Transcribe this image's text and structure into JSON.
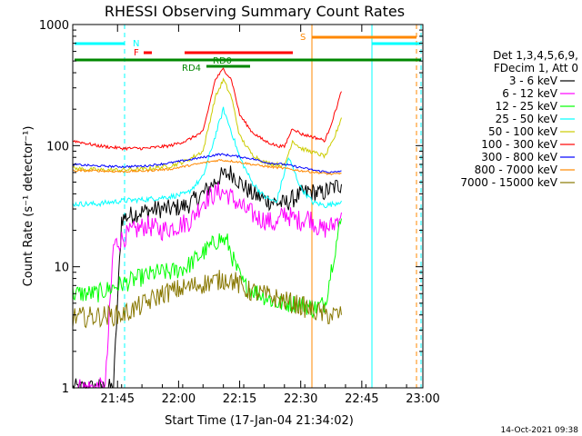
{
  "chart_data": {
    "type": "line",
    "title": "RHESSI Observing Summary Count Rates",
    "xlabel": "Start Time (17-Jan-04 21:34:02)",
    "ylabel": "Count Rate (s⁻¹ detector⁻¹)",
    "yscale": "log",
    "ylim": [
      1,
      1000
    ],
    "xlim_minutes_after_21_00": [
      34,
      120
    ],
    "x_ticks": [
      {
        "label": "21:45",
        "minute": 45
      },
      {
        "label": "22:00",
        "minute": 60
      },
      {
        "label": "22:15",
        "minute": 75
      },
      {
        "label": "22:30",
        "minute": 90
      },
      {
        "label": "22:45",
        "minute": 105
      },
      {
        "label": "23:00",
        "minute": 120
      }
    ],
    "y_ticks": [
      {
        "label": "1",
        "value": 1
      },
      {
        "label": "10",
        "value": 10
      },
      {
        "label": "100",
        "value": 100
      },
      {
        "label": "1000",
        "value": 1000
      }
    ],
    "legend_header": [
      "Det 1,3,4,5,6,9,",
      "FDecim 1, Att 0"
    ],
    "legend_position": "right",
    "series": [
      {
        "name": "3 - 6 keV",
        "color": "#000000",
        "points": [
          [
            34,
            1.0
          ],
          [
            44,
            1.0
          ],
          [
            46,
            25
          ],
          [
            50,
            28
          ],
          [
            55,
            30
          ],
          [
            58,
            30
          ],
          [
            62,
            32
          ],
          [
            66,
            40
          ],
          [
            70,
            55
          ],
          [
            73,
            60
          ],
          [
            75,
            50
          ],
          [
            78,
            40
          ],
          [
            82,
            35
          ],
          [
            86,
            33
          ],
          [
            89,
            38
          ],
          [
            92,
            42
          ],
          [
            95,
            40
          ],
          [
            98,
            45
          ],
          [
            100,
            48
          ]
        ]
      },
      {
        "name": "6 - 12 keV",
        "color": "#ff00ff",
        "points": [
          [
            34,
            1.0
          ],
          [
            42,
            1.0
          ],
          [
            44,
            15
          ],
          [
            48,
            19
          ],
          [
            52,
            22
          ],
          [
            56,
            20
          ],
          [
            60,
            22
          ],
          [
            63,
            24
          ],
          [
            66,
            35
          ],
          [
            70,
            42
          ],
          [
            72,
            40
          ],
          [
            76,
            30
          ],
          [
            80,
            25
          ],
          [
            82,
            24
          ],
          [
            84,
            22
          ],
          [
            86,
            28
          ],
          [
            88,
            25
          ],
          [
            90,
            24
          ],
          [
            92,
            26
          ],
          [
            95,
            20
          ],
          [
            98,
            22
          ],
          [
            100,
            28
          ]
        ]
      },
      {
        "name": "12 - 25 keV",
        "color": "#00ff00",
        "points": [
          [
            34,
            6
          ],
          [
            40,
            6
          ],
          [
            45,
            7
          ],
          [
            50,
            8
          ],
          [
            55,
            9
          ],
          [
            58,
            9
          ],
          [
            62,
            10
          ],
          [
            66,
            13
          ],
          [
            70,
            17
          ],
          [
            72,
            16
          ],
          [
            74,
            10
          ],
          [
            76,
            7
          ],
          [
            80,
            6
          ],
          [
            84,
            5
          ],
          [
            88,
            5
          ],
          [
            90,
            5
          ],
          [
            93,
            4.5
          ],
          [
            96,
            5
          ],
          [
            98,
            12
          ],
          [
            100,
            25
          ]
        ]
      },
      {
        "name": "25 - 50 keV",
        "color": "#00ffff",
        "points": [
          [
            34,
            33
          ],
          [
            40,
            33
          ],
          [
            46,
            35
          ],
          [
            52,
            36
          ],
          [
            58,
            38
          ],
          [
            62,
            40
          ],
          [
            66,
            55
          ],
          [
            69,
            120
          ],
          [
            71,
            200
          ],
          [
            73,
            130
          ],
          [
            75,
            80
          ],
          [
            78,
            50
          ],
          [
            81,
            38
          ],
          [
            84,
            34
          ],
          [
            87,
            80
          ],
          [
            90,
            45
          ],
          [
            93,
            34
          ],
          [
            96,
            32
          ],
          [
            98,
            33
          ],
          [
            100,
            35
          ]
        ]
      },
      {
        "name": "50 - 100 keV",
        "color": "#cccc00",
        "points": [
          [
            34,
            65
          ],
          [
            40,
            63
          ],
          [
            46,
            63
          ],
          [
            52,
            64
          ],
          [
            58,
            68
          ],
          [
            62,
            75
          ],
          [
            66,
            90
          ],
          [
            69,
            250
          ],
          [
            71,
            350
          ],
          [
            73,
            250
          ],
          [
            75,
            120
          ],
          [
            78,
            85
          ],
          [
            81,
            73
          ],
          [
            84,
            70
          ],
          [
            86,
            68
          ],
          [
            88,
            110
          ],
          [
            90,
            95
          ],
          [
            93,
            88
          ],
          [
            96,
            82
          ],
          [
            98,
            110
          ],
          [
            100,
            170
          ]
        ]
      },
      {
        "name": "100 - 300 keV",
        "color": "#ff0000",
        "points": [
          [
            34,
            110
          ],
          [
            40,
            100
          ],
          [
            46,
            95
          ],
          [
            52,
            95
          ],
          [
            58,
            100
          ],
          [
            62,
            110
          ],
          [
            66,
            130
          ],
          [
            69,
            350
          ],
          [
            71,
            430
          ],
          [
            73,
            350
          ],
          [
            75,
            180
          ],
          [
            78,
            130
          ],
          [
            81,
            110
          ],
          [
            84,
            100
          ],
          [
            86,
            98
          ],
          [
            88,
            140
          ],
          [
            90,
            125
          ],
          [
            93,
            118
          ],
          [
            96,
            110
          ],
          [
            98,
            170
          ],
          [
            100,
            280
          ]
        ]
      },
      {
        "name": "300 - 800 keV",
        "color": "#0000ff",
        "points": [
          [
            34,
            70
          ],
          [
            40,
            68
          ],
          [
            46,
            67
          ],
          [
            52,
            68
          ],
          [
            58,
            72
          ],
          [
            62,
            76
          ],
          [
            66,
            80
          ],
          [
            70,
            85
          ],
          [
            74,
            82
          ],
          [
            78,
            78
          ],
          [
            82,
            72
          ],
          [
            86,
            70
          ],
          [
            90,
            66
          ],
          [
            94,
            62
          ],
          [
            98,
            60
          ],
          [
            100,
            62
          ]
        ]
      },
      {
        "name": "800 - 7000 keV",
        "color": "#ff8800",
        "points": [
          [
            34,
            62
          ],
          [
            40,
            62
          ],
          [
            46,
            61
          ],
          [
            52,
            62
          ],
          [
            58,
            64
          ],
          [
            62,
            68
          ],
          [
            66,
            72
          ],
          [
            70,
            76
          ],
          [
            74,
            74
          ],
          [
            78,
            70
          ],
          [
            82,
            67
          ],
          [
            86,
            65
          ],
          [
            90,
            62
          ],
          [
            94,
            60
          ],
          [
            98,
            58
          ],
          [
            100,
            59
          ]
        ]
      },
      {
        "name": "7000 - 15000 keV",
        "color": "#887700",
        "points": [
          [
            34,
            3.8
          ],
          [
            40,
            3.9
          ],
          [
            46,
            4.0
          ],
          [
            52,
            5
          ],
          [
            56,
            6
          ],
          [
            60,
            6.5
          ],
          [
            64,
            7
          ],
          [
            68,
            7.5
          ],
          [
            72,
            8
          ],
          [
            74,
            7.5
          ],
          [
            76,
            6.5
          ],
          [
            80,
            6
          ],
          [
            84,
            5.5
          ],
          [
            88,
            5
          ],
          [
            92,
            4.5
          ],
          [
            96,
            4
          ],
          [
            98,
            4
          ],
          [
            100,
            4
          ]
        ]
      }
    ],
    "annotations": [
      {
        "text": "N",
        "color": "#00ffff"
      },
      {
        "text": "F",
        "color": "#ff0000"
      },
      {
        "text": "RD0",
        "color": "#008800"
      },
      {
        "text": "RD4",
        "color": "#008800"
      },
      {
        "text": "S",
        "color": "#ff8800"
      }
    ],
    "grid": false
  },
  "footer": {
    "timestamp": "14-Oct-2021 09:38"
  }
}
